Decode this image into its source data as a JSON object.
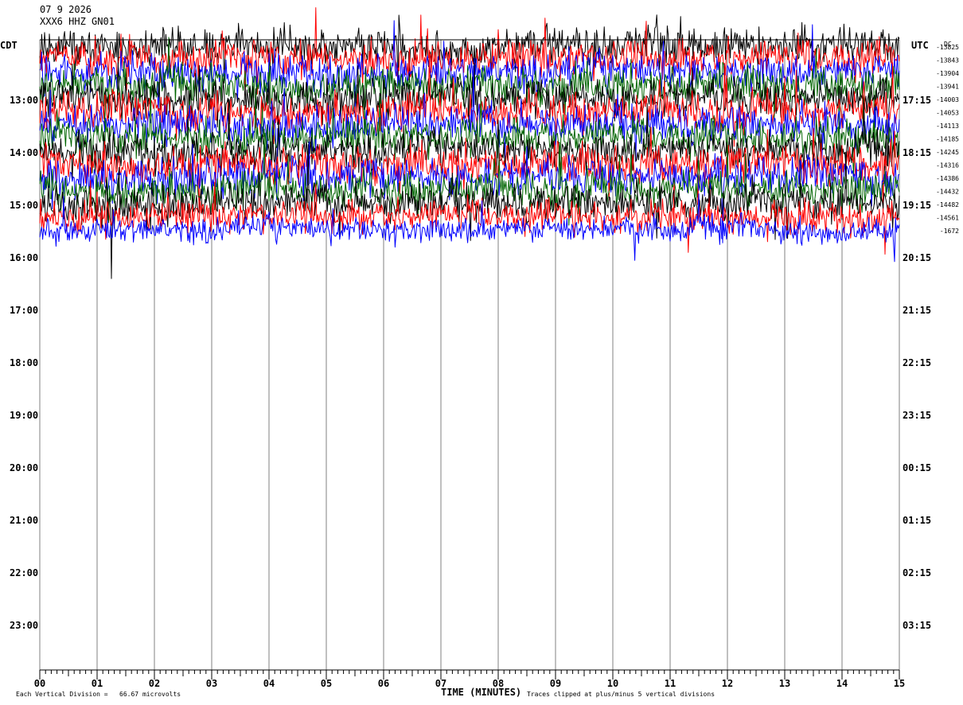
{
  "header": {
    "date": "07 9 2026",
    "station": "XXX6 HHZ GN01"
  },
  "labels": {
    "left_tz": "CDT",
    "right_tz": "UTC",
    "dc": "DC",
    "xlabel": "TIME (MINUTES)",
    "scale_note": "Each Vertical Division =   66.67 microvolts",
    "clip_note": "Traces clipped at plus/minus 5 vertical divisions"
  },
  "colors": {
    "cycle": [
      "#000000",
      "#ff0000",
      "#0000ff",
      "#006400"
    ],
    "grid": "#808080"
  },
  "chart_data": {
    "type": "line",
    "title": "",
    "xlabel": "TIME (MINUTES)",
    "xlim": [
      0,
      15
    ],
    "x_ticks": [
      "00",
      "01",
      "02",
      "03",
      "04",
      "05",
      "06",
      "07",
      "08",
      "09",
      "10",
      "11",
      "12",
      "13",
      "14",
      "15"
    ],
    "left_hour_labels": [
      "13:00",
      "14:00",
      "15:00",
      "16:00",
      "17:00",
      "18:00",
      "19:00",
      "20:00",
      "21:00",
      "22:00",
      "23:00"
    ],
    "right_hour_labels": [
      "17:15",
      "18:15",
      "19:15",
      "20:15",
      "21:15",
      "22:15",
      "23:15",
      "00:15",
      "01:15",
      "02:15",
      "03:15"
    ],
    "dc_offsets": [
      "-13825",
      "-13843",
      "-13904",
      "-13941",
      "-14003",
      "-14053",
      "-14113",
      "-14185",
      "-14245",
      "-14316",
      "-14386",
      "-14432",
      "-14482",
      "-14561",
      "-1672"
    ],
    "trace_rows": 15,
    "trace_amplitude_divisions": [
      6,
      6,
      6,
      6,
      6,
      6,
      6,
      6,
      6,
      6,
      6,
      6,
      6,
      5,
      4
    ],
    "clip_divisions": 5
  }
}
